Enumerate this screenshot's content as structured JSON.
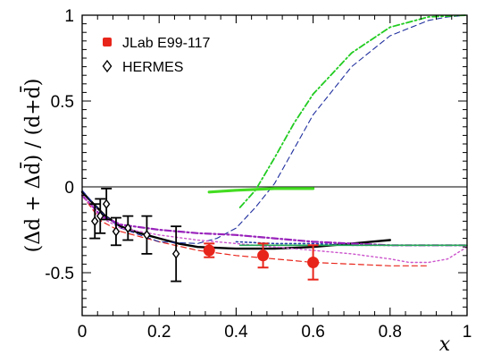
{
  "chart_data": {
    "type": "scatter",
    "title": "",
    "ylabel": "(Δd + Δd̄) / (d+d̄)",
    "xlabel": "x",
    "xlim": [
      0,
      1
    ],
    "ylim": [
      -0.75,
      1
    ],
    "x_ticks": [
      {
        "value": 0,
        "label": "0"
      },
      {
        "value": 0.2,
        "label": "0.2"
      },
      {
        "value": 0.4,
        "label": "0.4"
      },
      {
        "value": 0.6,
        "label": "0.6"
      },
      {
        "value": 0.8,
        "label": "0.8"
      },
      {
        "value": 1,
        "label": "1"
      }
    ],
    "y_ticks": [
      {
        "value": -0.5,
        "label": "-0.5"
      },
      {
        "value": 0,
        "label": "0"
      },
      {
        "value": 0.5,
        "label": "0.5"
      },
      {
        "value": 1,
        "label": "1"
      }
    ],
    "zero_line": true,
    "legend_position": "top-left",
    "legend": [
      {
        "label": "JLab E99-117",
        "marker": "filled-circle",
        "color": "#e8251b"
      },
      {
        "label": "HERMES",
        "marker": "open-diamond",
        "color": "#000000"
      }
    ],
    "series": [
      {
        "name": "JLab E99-117",
        "kind": "points",
        "marker": "filled-circle",
        "color": "#e8251b",
        "points": [
          {
            "x": 0.33,
            "y": -0.37,
            "err": 0.04
          },
          {
            "x": 0.47,
            "y": -0.4,
            "err": 0.07
          },
          {
            "x": 0.6,
            "y": -0.44,
            "err": 0.1
          }
        ]
      },
      {
        "name": "HERMES",
        "kind": "points",
        "marker": "open-diamond",
        "color": "#000000",
        "points": [
          {
            "x": 0.033,
            "y": -0.2,
            "err": 0.1
          },
          {
            "x": 0.047,
            "y": -0.17,
            "err": 0.1
          },
          {
            "x": 0.063,
            "y": -0.1,
            "err": 0.09
          },
          {
            "x": 0.088,
            "y": -0.26,
            "err": 0.08
          },
          {
            "x": 0.119,
            "y": -0.24,
            "err": 0.07
          },
          {
            "x": 0.168,
            "y": -0.28,
            "err": 0.11
          },
          {
            "x": 0.244,
            "y": -0.39,
            "err": 0.16
          }
        ]
      },
      {
        "kind": "curve",
        "style": "solid",
        "color": "#000000",
        "width": 2.4,
        "points": [
          [
            0.0,
            -0.03
          ],
          [
            0.03,
            -0.1
          ],
          [
            0.06,
            -0.17
          ],
          [
            0.1,
            -0.23
          ],
          [
            0.15,
            -0.27
          ],
          [
            0.2,
            -0.3
          ],
          [
            0.25,
            -0.33
          ],
          [
            0.3,
            -0.35
          ],
          [
            0.4,
            -0.36
          ],
          [
            0.5,
            -0.36
          ],
          [
            0.6,
            -0.35
          ],
          [
            0.7,
            -0.33
          ],
          [
            0.75,
            -0.32
          ],
          [
            0.8,
            -0.31
          ]
        ]
      },
      {
        "kind": "curve",
        "style": "dashed",
        "color": "#e8251b",
        "width": 1.2,
        "points": [
          [
            0.0,
            -0.05
          ],
          [
            0.05,
            -0.2
          ],
          [
            0.1,
            -0.26
          ],
          [
            0.2,
            -0.32
          ],
          [
            0.3,
            -0.37
          ],
          [
            0.4,
            -0.4
          ],
          [
            0.5,
            -0.42
          ],
          [
            0.6,
            -0.44
          ],
          [
            0.7,
            -0.45
          ],
          [
            0.8,
            -0.46
          ],
          [
            0.9,
            -0.46
          ]
        ]
      },
      {
        "kind": "curve",
        "style": "dashed",
        "color": "#1f2f9e",
        "width": 1.1,
        "points": [
          [
            0.0,
            -0.02
          ],
          [
            0.05,
            -0.15
          ],
          [
            0.1,
            -0.24
          ],
          [
            0.2,
            -0.32
          ],
          [
            0.3,
            -0.33
          ],
          [
            0.35,
            -0.3
          ],
          [
            0.4,
            -0.24
          ],
          [
            0.45,
            -0.12
          ],
          [
            0.5,
            0.02
          ],
          [
            0.55,
            0.22
          ],
          [
            0.6,
            0.42
          ],
          [
            0.7,
            0.7
          ],
          [
            0.8,
            0.88
          ],
          [
            0.9,
            0.97
          ],
          [
            0.95,
            0.99
          ],
          [
            1.0,
            1.0
          ]
        ]
      },
      {
        "kind": "curve",
        "style": "dashdot",
        "color": "#22cc22",
        "width": 1.8,
        "points": [
          [
            0.41,
            -0.12
          ],
          [
            0.45,
            -0.02
          ],
          [
            0.5,
            0.17
          ],
          [
            0.55,
            0.37
          ],
          [
            0.6,
            0.54
          ],
          [
            0.7,
            0.78
          ],
          [
            0.8,
            0.93
          ],
          [
            0.9,
            0.99
          ],
          [
            1.0,
            1.0
          ]
        ]
      },
      {
        "kind": "curve",
        "style": "dashdot",
        "color": "#9922bb",
        "width": 2.2,
        "points": [
          [
            0.0,
            -0.05
          ],
          [
            0.05,
            -0.17
          ],
          [
            0.1,
            -0.22
          ],
          [
            0.2,
            -0.25
          ],
          [
            0.3,
            -0.27
          ],
          [
            0.4,
            -0.28
          ],
          [
            0.5,
            -0.3
          ],
          [
            0.6,
            -0.32
          ],
          [
            0.7,
            -0.33
          ],
          [
            0.8,
            -0.34
          ],
          [
            0.9,
            -0.34
          ],
          [
            1.0,
            -0.34
          ]
        ]
      },
      {
        "kind": "curve",
        "style": "dotted",
        "color": "#cc55cc",
        "width": 1.4,
        "points": [
          [
            0.0,
            -0.05
          ],
          [
            0.05,
            -0.18
          ],
          [
            0.1,
            -0.24
          ],
          [
            0.2,
            -0.28
          ],
          [
            0.3,
            -0.31
          ],
          [
            0.4,
            -0.33
          ],
          [
            0.5,
            -0.35
          ],
          [
            0.6,
            -0.37
          ],
          [
            0.7,
            -0.39
          ],
          [
            0.8,
            -0.42
          ],
          [
            0.85,
            -0.44
          ],
          [
            0.9,
            -0.44
          ],
          [
            0.95,
            -0.42
          ],
          [
            1.0,
            -0.35
          ]
        ]
      },
      {
        "kind": "curve",
        "style": "dotted",
        "color": "#2a3fa8",
        "width": 1.6,
        "points": [
          [
            0.4,
            -0.32
          ],
          [
            0.5,
            -0.33
          ],
          [
            0.6,
            -0.33
          ],
          [
            0.7,
            -0.34
          ],
          [
            0.8,
            -0.34
          ],
          [
            0.9,
            -0.34
          ],
          [
            1.0,
            -0.34
          ]
        ]
      },
      {
        "kind": "curve",
        "style": "solid",
        "color": "#22aa55",
        "width": 1.6,
        "points": [
          [
            0.41,
            -0.34
          ],
          [
            1.0,
            -0.34
          ]
        ]
      },
      {
        "kind": "curve",
        "style": "solid",
        "color": "#44dd22",
        "width": 3.2,
        "points": [
          [
            0.33,
            -0.03
          ],
          [
            0.4,
            -0.02
          ],
          [
            0.5,
            -0.01
          ],
          [
            0.6,
            -0.01
          ]
        ]
      }
    ]
  }
}
